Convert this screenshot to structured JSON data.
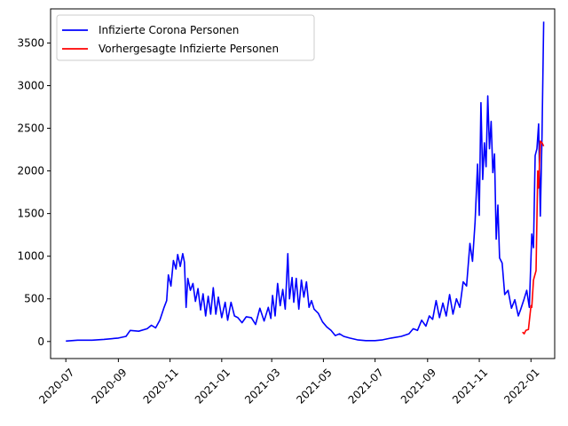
{
  "chart_data": {
    "type": "line",
    "title": "",
    "xlabel": "",
    "ylabel": "",
    "xlim": [
      "2020-06-13",
      "2022-01-29"
    ],
    "ylim": [
      -200,
      3900
    ],
    "grid": false,
    "legend_position": "top-left",
    "x_ticks": [
      "2020-07",
      "2020-09",
      "2020-11",
      "2021-01",
      "2021-03",
      "2021-05",
      "2021-07",
      "2021-09",
      "2021-11",
      "2022-01"
    ],
    "y_ticks": [
      0,
      500,
      1000,
      1500,
      2000,
      2500,
      3000,
      3500
    ],
    "series": [
      {
        "name": "Infizierte Corona Personen",
        "color": "#0000ff",
        "points": [
          [
            "2020-07-01",
            5
          ],
          [
            "2020-07-15",
            15
          ],
          [
            "2020-08-01",
            15
          ],
          [
            "2020-08-15",
            25
          ],
          [
            "2020-09-01",
            40
          ],
          [
            "2020-09-10",
            60
          ],
          [
            "2020-09-15",
            130
          ],
          [
            "2020-09-25",
            120
          ],
          [
            "2020-10-05",
            150
          ],
          [
            "2020-10-10",
            190
          ],
          [
            "2020-10-15",
            160
          ],
          [
            "2020-10-20",
            250
          ],
          [
            "2020-10-25",
            400
          ],
          [
            "2020-10-28",
            480
          ],
          [
            "2020-10-30",
            780
          ],
          [
            "2020-11-02",
            650
          ],
          [
            "2020-11-05",
            950
          ],
          [
            "2020-11-08",
            850
          ],
          [
            "2020-11-10",
            1020
          ],
          [
            "2020-11-13",
            880
          ],
          [
            "2020-11-16",
            1030
          ],
          [
            "2020-11-18",
            930
          ],
          [
            "2020-11-20",
            400
          ],
          [
            "2020-11-22",
            740
          ],
          [
            "2020-11-25",
            600
          ],
          [
            "2020-11-28",
            680
          ],
          [
            "2020-12-01",
            470
          ],
          [
            "2020-12-04",
            620
          ],
          [
            "2020-12-07",
            370
          ],
          [
            "2020-12-10",
            560
          ],
          [
            "2020-12-13",
            300
          ],
          [
            "2020-12-16",
            530
          ],
          [
            "2020-12-19",
            320
          ],
          [
            "2020-12-22",
            630
          ],
          [
            "2020-12-25",
            320
          ],
          [
            "2020-12-28",
            520
          ],
          [
            "2021-01-01",
            280
          ],
          [
            "2021-01-05",
            460
          ],
          [
            "2021-01-08",
            250
          ],
          [
            "2021-01-12",
            460
          ],
          [
            "2021-01-16",
            300
          ],
          [
            "2021-01-20",
            280
          ],
          [
            "2021-01-25",
            220
          ],
          [
            "2021-01-30",
            290
          ],
          [
            "2021-02-05",
            280
          ],
          [
            "2021-02-10",
            200
          ],
          [
            "2021-02-15",
            390
          ],
          [
            "2021-02-20",
            240
          ],
          [
            "2021-02-25",
            400
          ],
          [
            "2021-02-28",
            270
          ],
          [
            "2021-03-02",
            540
          ],
          [
            "2021-03-05",
            300
          ],
          [
            "2021-03-08",
            680
          ],
          [
            "2021-03-11",
            420
          ],
          [
            "2021-03-14",
            610
          ],
          [
            "2021-03-17",
            380
          ],
          [
            "2021-03-20",
            1030
          ],
          [
            "2021-03-22",
            500
          ],
          [
            "2021-03-25",
            750
          ],
          [
            "2021-03-27",
            460
          ],
          [
            "2021-03-30",
            740
          ],
          [
            "2021-04-02",
            380
          ],
          [
            "2021-04-05",
            720
          ],
          [
            "2021-04-08",
            520
          ],
          [
            "2021-04-11",
            700
          ],
          [
            "2021-04-14",
            400
          ],
          [
            "2021-04-17",
            480
          ],
          [
            "2021-04-20",
            380
          ],
          [
            "2021-04-25",
            330
          ],
          [
            "2021-04-30",
            230
          ],
          [
            "2021-05-05",
            170
          ],
          [
            "2021-05-10",
            130
          ],
          [
            "2021-05-15",
            70
          ],
          [
            "2021-05-20",
            90
          ],
          [
            "2021-05-25",
            60
          ],
          [
            "2021-06-01",
            40
          ],
          [
            "2021-06-10",
            20
          ],
          [
            "2021-06-20",
            10
          ],
          [
            "2021-07-01",
            10
          ],
          [
            "2021-07-10",
            20
          ],
          [
            "2021-07-20",
            40
          ],
          [
            "2021-08-01",
            60
          ],
          [
            "2021-08-10",
            90
          ],
          [
            "2021-08-15",
            150
          ],
          [
            "2021-08-20",
            130
          ],
          [
            "2021-08-25",
            250
          ],
          [
            "2021-08-30",
            180
          ],
          [
            "2021-09-03",
            300
          ],
          [
            "2021-09-07",
            260
          ],
          [
            "2021-09-11",
            480
          ],
          [
            "2021-09-15",
            280
          ],
          [
            "2021-09-19",
            450
          ],
          [
            "2021-09-23",
            300
          ],
          [
            "2021-09-27",
            550
          ],
          [
            "2021-10-01",
            320
          ],
          [
            "2021-10-05",
            500
          ],
          [
            "2021-10-09",
            400
          ],
          [
            "2021-10-13",
            700
          ],
          [
            "2021-10-17",
            650
          ],
          [
            "2021-10-21",
            1150
          ],
          [
            "2021-10-24",
            940
          ],
          [
            "2021-10-27",
            1400
          ],
          [
            "2021-10-30",
            2080
          ],
          [
            "2021-11-01",
            1480
          ],
          [
            "2021-11-03",
            2800
          ],
          [
            "2021-11-05",
            1900
          ],
          [
            "2021-11-07",
            2330
          ],
          [
            "2021-11-09",
            2050
          ],
          [
            "2021-11-11",
            2880
          ],
          [
            "2021-11-13",
            2260
          ],
          [
            "2021-11-15",
            2580
          ],
          [
            "2021-11-17",
            1980
          ],
          [
            "2021-11-19",
            2200
          ],
          [
            "2021-11-21",
            1200
          ],
          [
            "2021-11-23",
            1600
          ],
          [
            "2021-11-25",
            980
          ],
          [
            "2021-11-28",
            920
          ],
          [
            "2021-12-01",
            550
          ],
          [
            "2021-12-05",
            600
          ],
          [
            "2021-12-09",
            390
          ],
          [
            "2021-12-13",
            490
          ],
          [
            "2021-12-17",
            300
          ],
          [
            "2021-12-20",
            380
          ],
          [
            "2021-12-24",
            500
          ],
          [
            "2021-12-27",
            600
          ],
          [
            "2021-12-30",
            400
          ],
          [
            "2022-01-02",
            1260
          ],
          [
            "2022-01-04",
            1100
          ],
          [
            "2022-01-06",
            2180
          ],
          [
            "2022-01-08",
            2260
          ],
          [
            "2022-01-10",
            2550
          ],
          [
            "2022-01-12",
            1470
          ],
          [
            "2022-01-14",
            2400
          ],
          [
            "2022-01-16",
            3750
          ]
        ]
      },
      {
        "name": "Vorhergesagte Infizierte Personen",
        "color": "#ff0000",
        "points": [
          [
            "2021-12-22",
            110
          ],
          [
            "2021-12-24",
            90
          ],
          [
            "2021-12-26",
            130
          ],
          [
            "2021-12-29",
            140
          ],
          [
            "2022-01-01",
            420
          ],
          [
            "2022-01-02",
            400
          ],
          [
            "2022-01-04",
            720
          ],
          [
            "2022-01-07",
            830
          ],
          [
            "2022-01-09",
            2000
          ],
          [
            "2022-01-10",
            1800
          ],
          [
            "2022-01-12",
            2350
          ],
          [
            "2022-01-14",
            2330
          ],
          [
            "2022-01-16",
            2290
          ]
        ]
      }
    ]
  }
}
